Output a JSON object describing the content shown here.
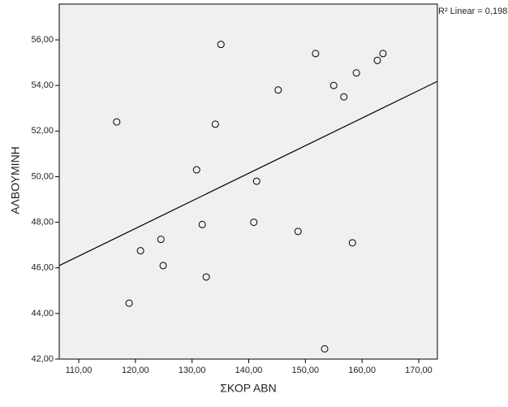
{
  "chart_data": {
    "type": "scatter",
    "x_label": "ΣΚΟΡ ΑΒΝ",
    "y_label": "ΑΛΒΟΥΜΙΝΗ",
    "annotation": "R² Linear = 0,198",
    "series": [
      {
        "color": "#000000",
        "x": [
          116.7,
          135.1,
          151.8,
          163.7,
          162.7,
          159.0,
          155.0,
          145.2,
          156.8,
          134.1,
          130.8,
          141.4,
          131.8,
          140.9,
          148.7,
          158.3,
          124.5,
          120.9,
          124.9,
          132.5,
          118.9,
          153.4
        ],
        "values": [
          52.4,
          55.8,
          55.4,
          55.4,
          55.1,
          54.55,
          54.0,
          53.8,
          53.5,
          52.3,
          50.3,
          49.8,
          47.9,
          48.0,
          47.6,
          47.1,
          47.25,
          46.75,
          46.1,
          45.6,
          44.45,
          42.45
        ]
      }
    ],
    "fit_line": {
      "color": "#000000",
      "x": [
        106.56,
        173.3
      ],
      "values": [
        46.1,
        54.18
      ]
    },
    "xlim": [
      106.56,
      173.3
    ],
    "ylim": [
      42,
      57.57
    ],
    "xticks": [
      {
        "value": 110,
        "label": "110,00"
      },
      {
        "value": 120,
        "label": "120,00"
      },
      {
        "value": 130,
        "label": "130,00"
      },
      {
        "value": 140,
        "label": "140,00"
      },
      {
        "value": 150,
        "label": "150,00"
      },
      {
        "value": 160,
        "label": "160,00"
      },
      {
        "value": 170,
        "label": "170,00"
      }
    ],
    "yticks": [
      {
        "value": 42,
        "label": "42,00"
      },
      {
        "value": 44,
        "label": "44,00"
      },
      {
        "value": 46,
        "label": "46,00"
      },
      {
        "value": 48,
        "label": "48,00"
      },
      {
        "value": 50,
        "label": "50,00"
      },
      {
        "value": 52,
        "label": "52,00"
      },
      {
        "value": 54,
        "label": "54,00"
      },
      {
        "value": 56,
        "label": "56,00"
      }
    ],
    "background": "#f0f0f0"
  }
}
